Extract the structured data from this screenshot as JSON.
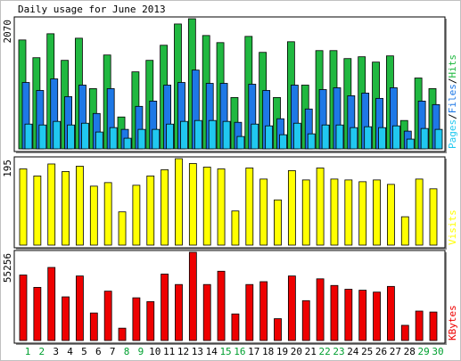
{
  "chart_data": {
    "type": "bar",
    "title": "Daily usage for June 2013",
    "categories": [
      "1",
      "2",
      "3",
      "4",
      "5",
      "6",
      "7",
      "8",
      "9",
      "10",
      "11",
      "12",
      "13",
      "14",
      "15",
      "16",
      "17",
      "18",
      "19",
      "20",
      "21",
      "22",
      "23",
      "24",
      "25",
      "26",
      "27",
      "28",
      "29",
      "30"
    ],
    "category_colors": [
      "#00a030",
      "#00a030",
      "#000000",
      "#000000",
      "#000000",
      "#000000",
      "#000000",
      "#00a030",
      "#00a030",
      "#000000",
      "#000000",
      "#000000",
      "#000000",
      "#000000",
      "#00a030",
      "#00a030",
      "#000000",
      "#000000",
      "#000000",
      "#000000",
      "#000000",
      "#00a030",
      "#00a030",
      "#000000",
      "#000000",
      "#000000",
      "#000000",
      "#000000",
      "#00a030",
      "#00a030"
    ],
    "legend_separator": "/",
    "panels": [
      {
        "ylim": [
          0,
          2070
        ],
        "yticks": [
          2070
        ],
        "series": [
          {
            "name": "Pages",
            "color": "#20c8f0",
            "values": [
              394,
              380,
              437,
              380,
              408,
              268,
              338,
              169,
              310,
              310,
              394,
              437,
              451,
              451,
              437,
              197,
              394,
              366,
              225,
              408,
              239,
              380,
              380,
              338,
              352,
              338,
              366,
              155,
              324,
              310
            ]
          },
          {
            "name": "Files",
            "color": "#1e78e6",
            "values": [
              1056,
              929,
              1113,
              831,
              1014,
              563,
              958,
              310,
              676,
              760,
              1014,
              1056,
              1253,
              1042,
              1042,
              422,
              1028,
              929,
              479,
              1014,
              634,
              943,
              972,
              845,
              887,
              803,
              972,
              282,
              760,
              704
            ]
          },
          {
            "name": "Hits",
            "color": "#20b840",
            "values": [
              1732,
              1450,
              1831,
              1408,
              1760,
              958,
              1493,
              507,
              1225,
              1408,
              1648,
              1986,
              2070,
              1803,
              1690,
              817,
              1789,
              1535,
              817,
              1704,
              1014,
              1563,
              1563,
              1436,
              1465,
              1380,
              1479,
              451,
              1127,
              958
            ]
          }
        ]
      },
      {
        "ylim": [
          0,
          195
        ],
        "yticks": [
          195
        ],
        "series": [
          {
            "name": "Visits",
            "color": "#ffff00",
            "values": [
              172,
              156,
              183,
              166,
              178,
              133,
              141,
              75,
              135,
              156,
              170,
              195,
              184,
              176,
              172,
              77,
              174,
              149,
              102,
              168,
              147,
              174,
              149,
              147,
              143,
              147,
              137,
              64,
              149,
              127
            ]
          }
        ]
      },
      {
        "ylim": [
          0,
          55256
        ],
        "yticks": [
          55256
        ],
        "series": [
          {
            "name": "KBytes",
            "color": "#ee0000",
            "values": [
              40996,
              33273,
              45750,
              27331,
              40402,
              17230,
              30896,
              7724,
              26737,
              24360,
              41591,
              35055,
              55256,
              35055,
              43373,
              16636,
              35055,
              36837,
              13665,
              40402,
              24954,
              38620,
              34461,
              32084,
              31490,
              30302,
              33866,
              9506,
              18419,
              17824
            ]
          }
        ]
      }
    ]
  }
}
